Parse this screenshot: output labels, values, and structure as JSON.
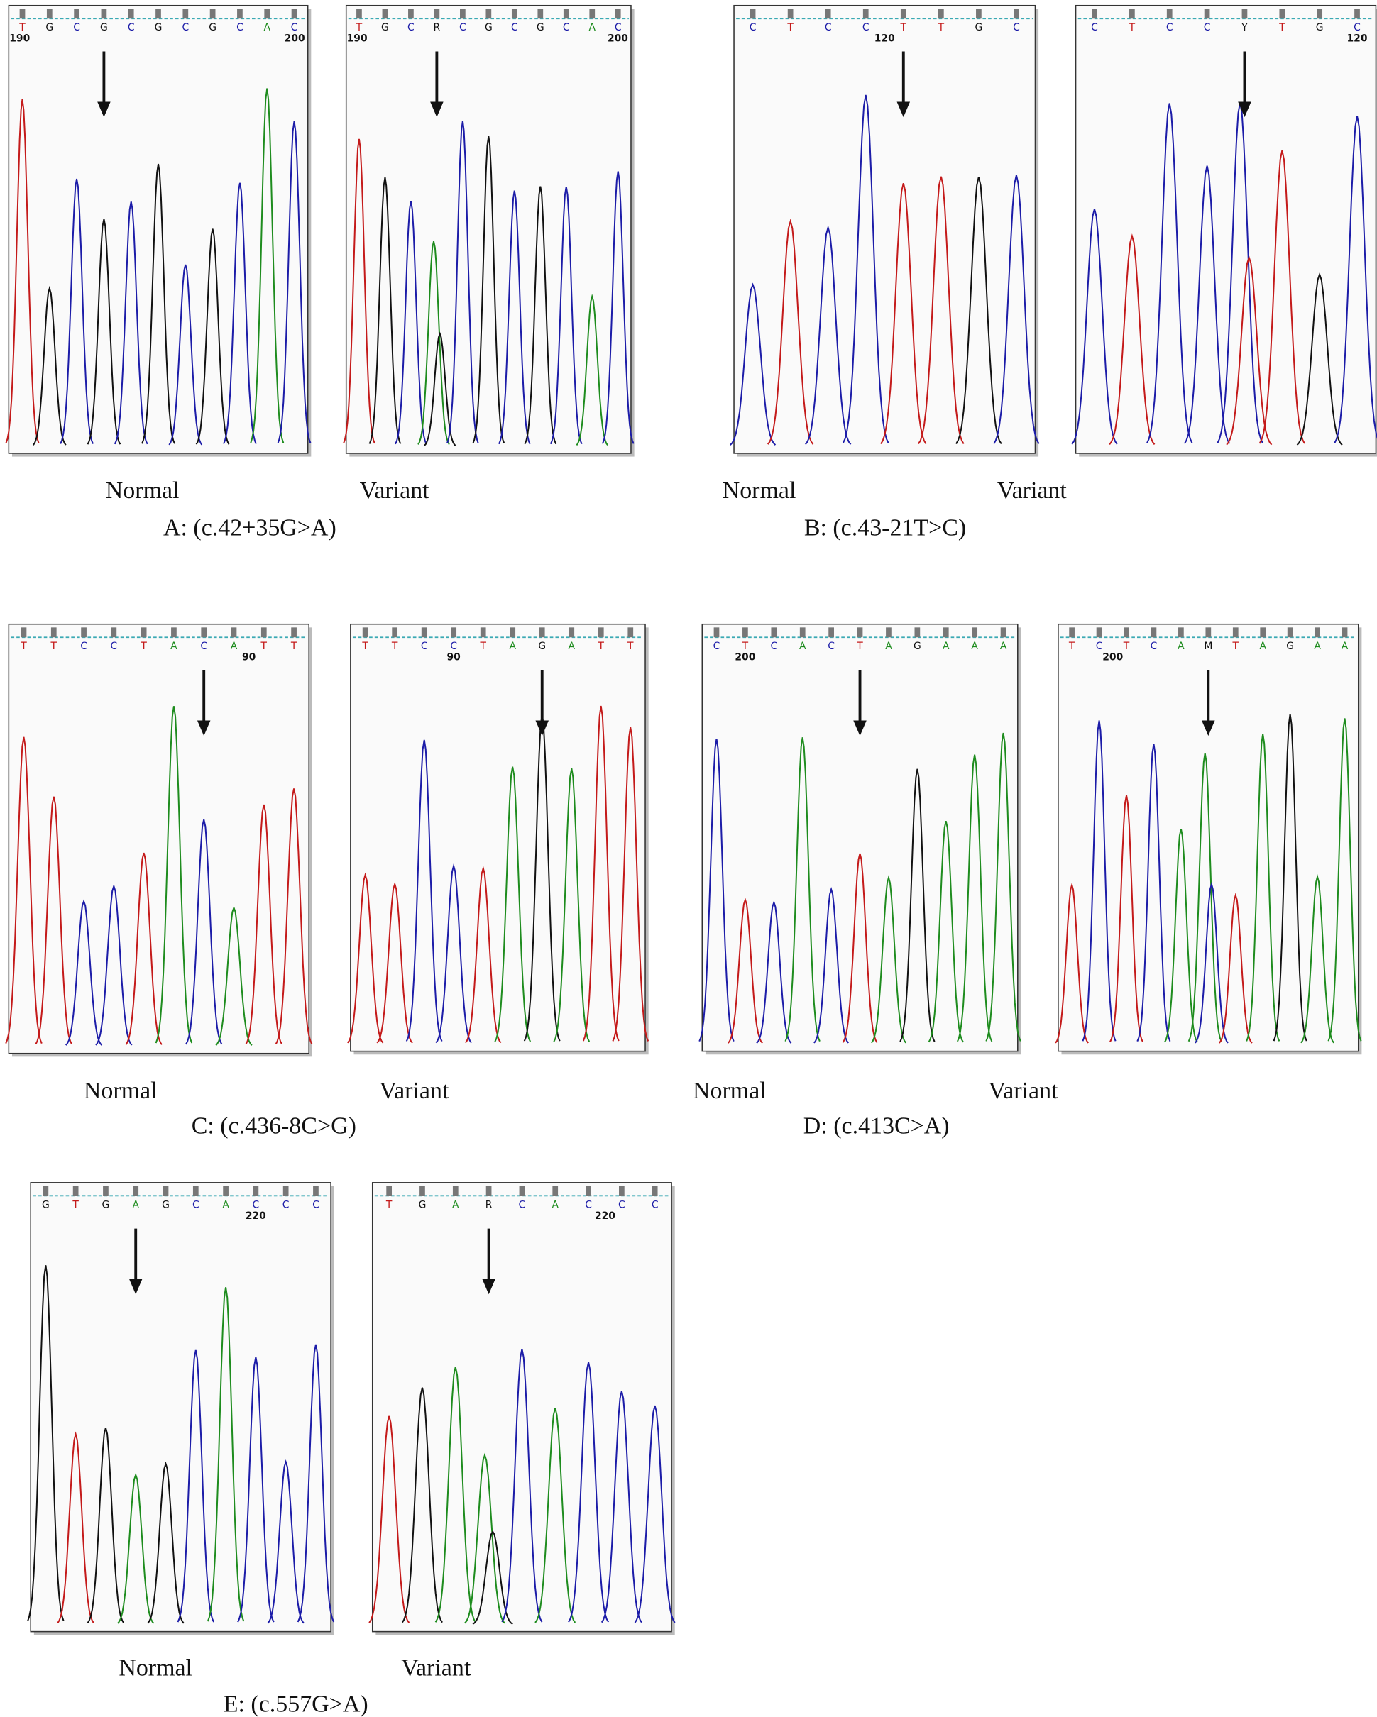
{
  "panels": [
    {
      "caption": "A: (c.42+35G>A)",
      "normal": {
        "label": "Normal",
        "bases": [
          "T",
          "G",
          "C",
          "G",
          "C",
          "G",
          "C",
          "G",
          "C",
          "A",
          "C"
        ],
        "positions": [
          190,
          200
        ]
      },
      "variant": {
        "label": "Variant",
        "bases": [
          "T",
          "G",
          "C",
          "R",
          "C",
          "G",
          "C",
          "G",
          "C",
          "A",
          "C"
        ],
        "positions": [
          190,
          200
        ]
      }
    },
    {
      "caption": "B: (c.43-21T>C)",
      "normal": {
        "label": "Normal",
        "bases": [
          "C",
          "T",
          "C",
          "C",
          "T",
          "T",
          "G",
          "C"
        ],
        "positions": [
          120
        ]
      },
      "variant": {
        "label": "Variant",
        "bases": [
          "C",
          "T",
          "C",
          "C",
          "Y",
          "T",
          "G",
          "C"
        ],
        "positions": [
          120
        ]
      }
    },
    {
      "caption": "C: (c.436-8C>G)",
      "normal": {
        "label": "Normal",
        "bases": [
          "T",
          "T",
          "C",
          "C",
          "T",
          "A",
          "C",
          "A",
          "T",
          "T"
        ],
        "positions": [
          90
        ]
      },
      "variant": {
        "label": "Variant",
        "bases": [
          "T",
          "T",
          "C",
          "C",
          "T",
          "A",
          "G",
          "A",
          "T",
          "T"
        ],
        "positions": [
          90
        ]
      }
    },
    {
      "caption": "D: (c.413C>A)",
      "normal": {
        "label": "Normal",
        "bases": [
          "C",
          "T",
          "C",
          "A",
          "C",
          "T",
          "A",
          "G",
          "A",
          "A",
          "A"
        ],
        "positions": [
          200
        ]
      },
      "variant": {
        "label": "Variant",
        "bases": [
          "T",
          "C",
          "T",
          "C",
          "A",
          "M",
          "T",
          "A",
          "G",
          "A",
          "A"
        ],
        "positions": [
          200
        ]
      }
    },
    {
      "caption": "E: (c.557G>A)",
      "normal": {
        "label": "Normal",
        "bases": [
          "G",
          "T",
          "G",
          "A",
          "G",
          "C",
          "A",
          "C",
          "C",
          "C"
        ],
        "positions": [
          220
        ]
      },
      "variant": {
        "label": "Variant",
        "bases": [
          "T",
          "G",
          "A",
          "R",
          "C",
          "A",
          "C",
          "C",
          "C"
        ],
        "positions": [
          220
        ]
      }
    }
  ]
}
